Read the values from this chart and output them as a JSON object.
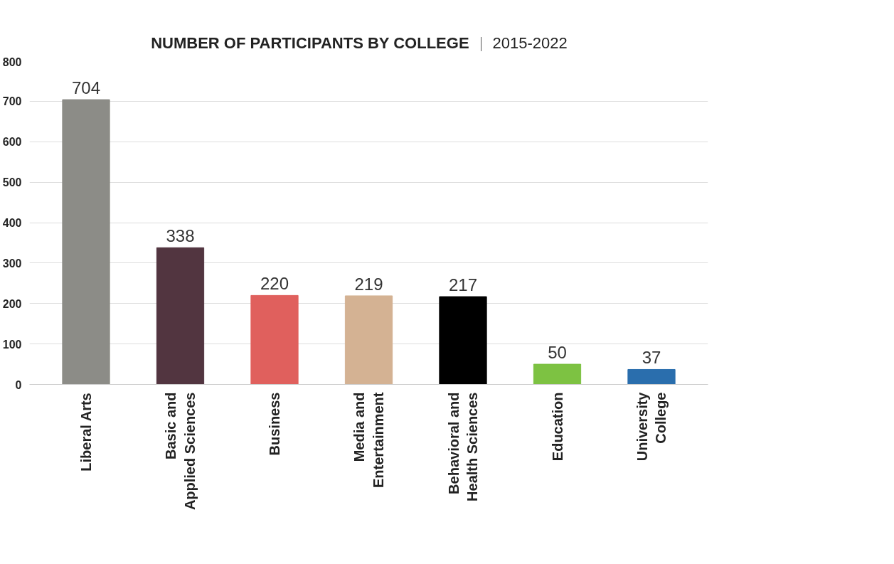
{
  "chart_data": {
    "type": "bar",
    "title": "NUMBER OF PARTICIPANTS BY COLLEGE",
    "subtitle": "2015-2022",
    "categories": [
      "Liberal Arts",
      "Basic and\nApplied Sciences",
      "Business",
      "Media and\nEntertainment",
      "Behavioral and\nHealth Sciences",
      "Education",
      "University\nCollege"
    ],
    "values": [
      704,
      338,
      220,
      219,
      217,
      50,
      37
    ],
    "colors": [
      "#8c8c87",
      "#523540",
      "#e0605d",
      "#d4b293",
      "#000000",
      "#7dc242",
      "#2a6ead"
    ],
    "ylim": [
      0,
      800
    ],
    "yticks": [
      0,
      100,
      200,
      300,
      400,
      500,
      600,
      700,
      800
    ],
    "grid": "y",
    "data_labels": true
  }
}
